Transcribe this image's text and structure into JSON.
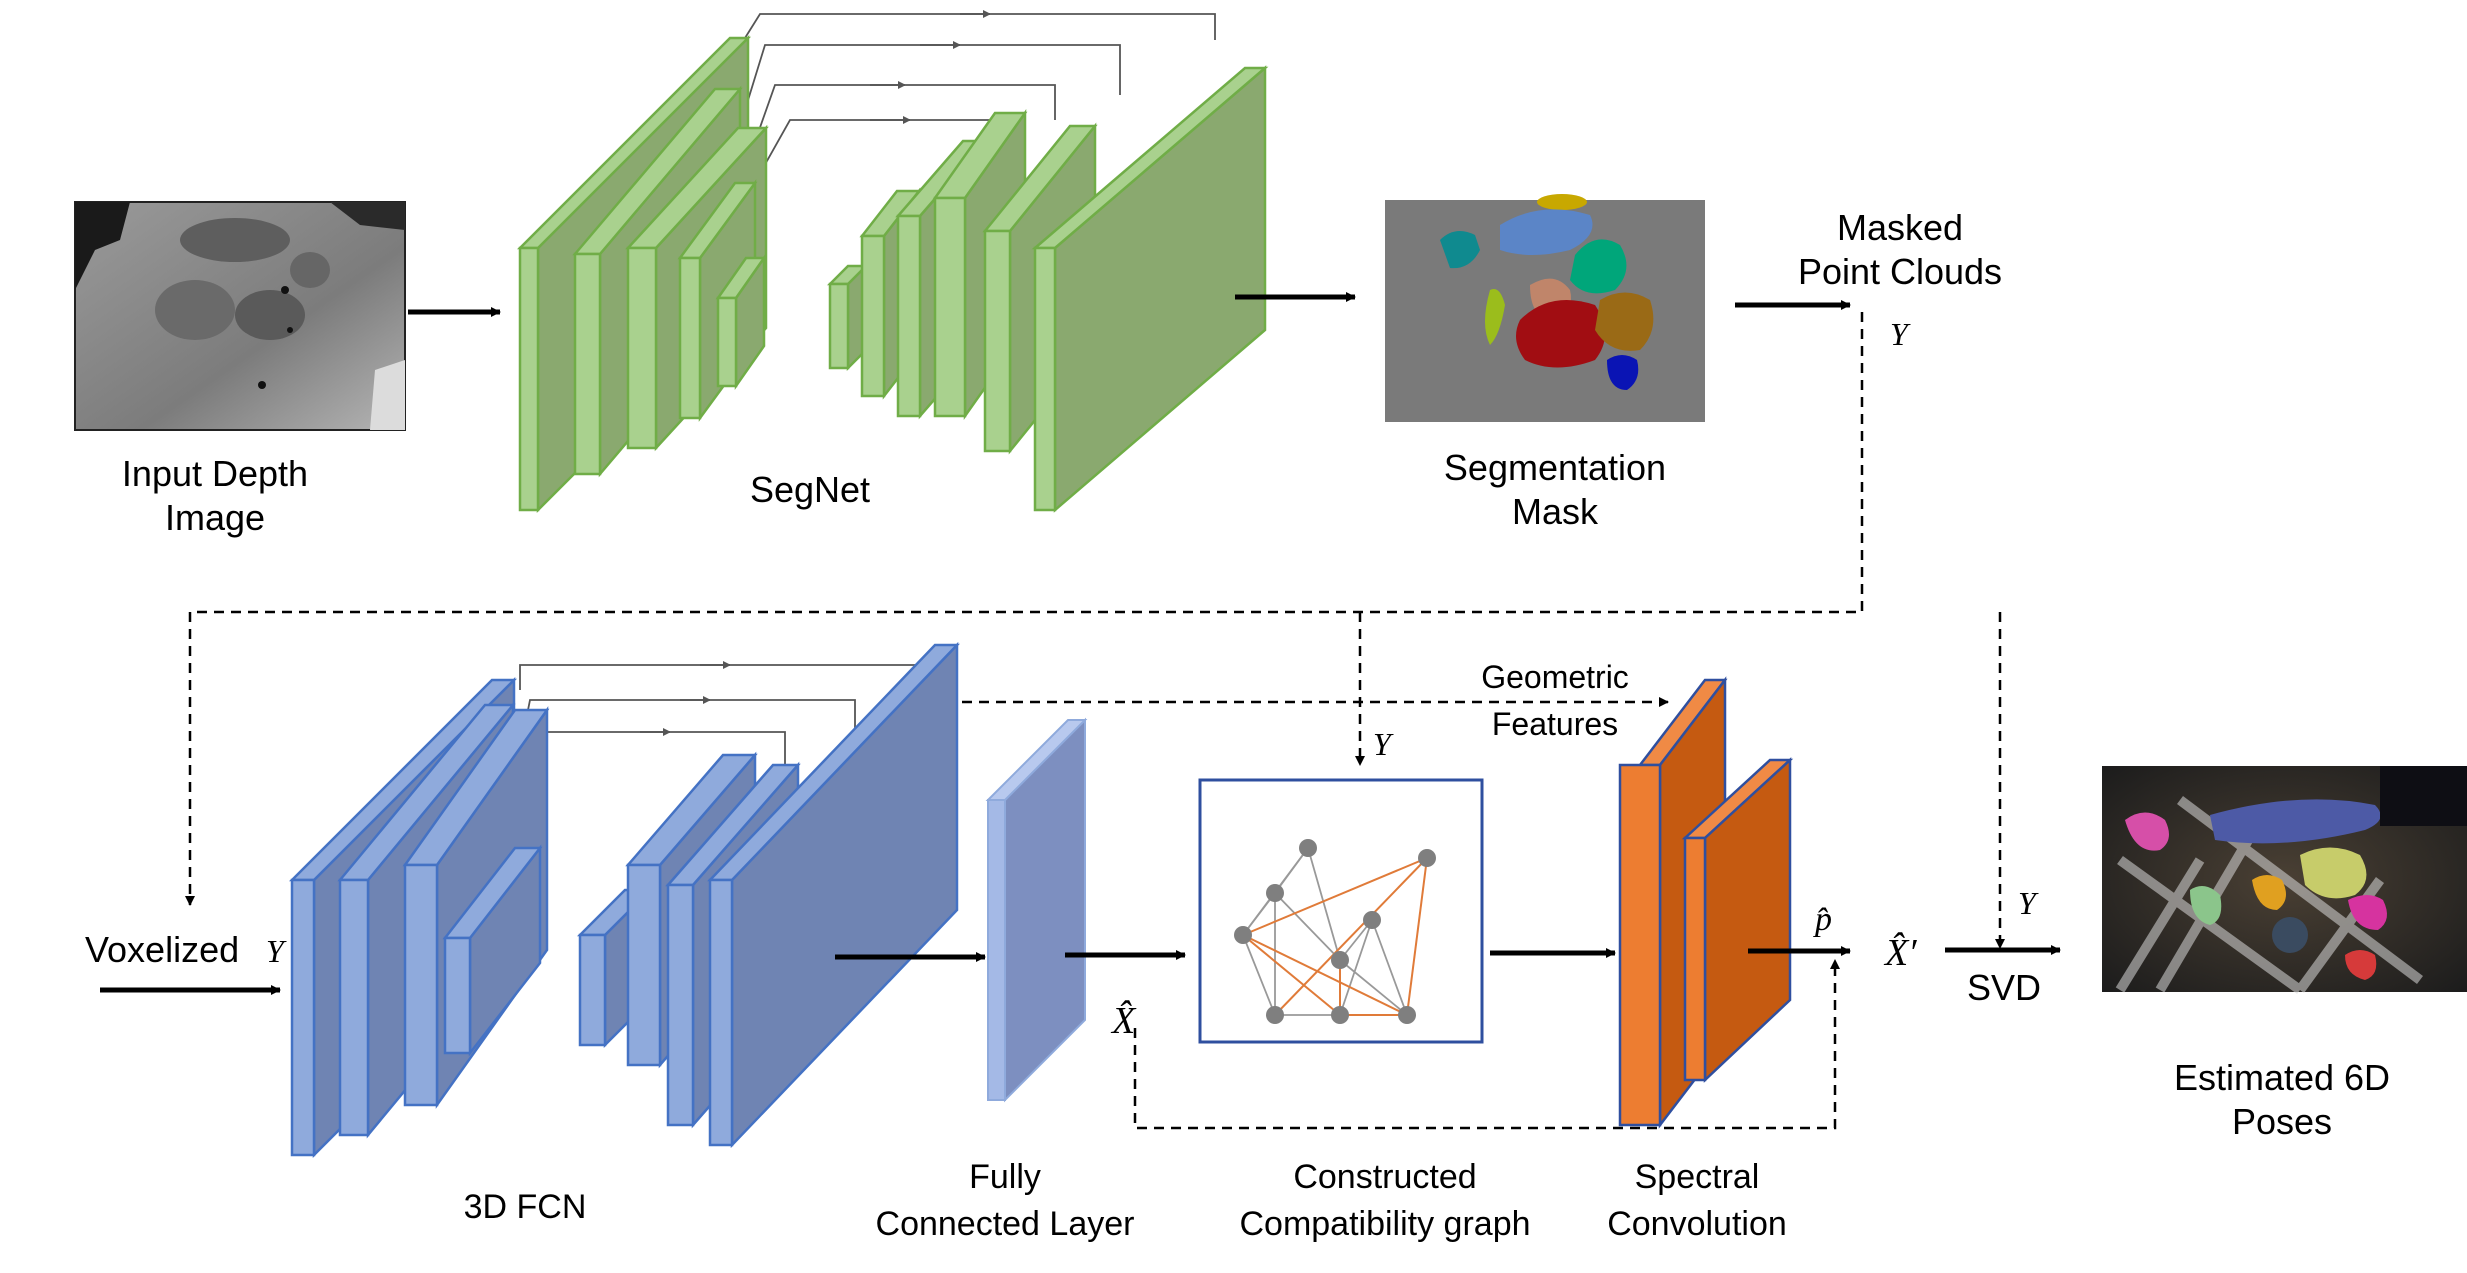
{
  "labels": {
    "input_depth_line1": "Input Depth",
    "input_depth_line2": "Image",
    "segnet": "SegNet",
    "seg_mask_line1": "Segmentation",
    "seg_mask_line2": "Mask",
    "masked_line1": "Masked",
    "masked_line2": "Point Clouds",
    "voxelized": "Voxelized",
    "fcn3d": "3D FCN",
    "fc_line1": "Fully",
    "fc_line2": "Connected Layer",
    "graph_line1": "Constructed",
    "graph_line2": "Compatibility graph",
    "spectral_line1": "Spectral",
    "spectral_line2": "Convolution",
    "geo_line1": "Geometric",
    "geo_line2": "Features",
    "svd": "SVD",
    "est_line1": "Estimated 6D",
    "est_line2": "Poses"
  },
  "math": {
    "y_symbol": "Y",
    "x_hat": "X̂",
    "p_hat": "p̂",
    "x_hat_prime": "X̂′"
  },
  "colors": {
    "green_front": "#a9d18e",
    "green_face": "#8aa96f",
    "green_edge": "#70ad47",
    "blue_front": "#8faadc",
    "blue_face": "#6f84b3",
    "blue_edge": "#4472c4",
    "orange_front": "#ed7d31",
    "orange_face": "#c55a11",
    "mask_bg": "#7a7a7a",
    "photo_bg": "#2b2b2b"
  }
}
